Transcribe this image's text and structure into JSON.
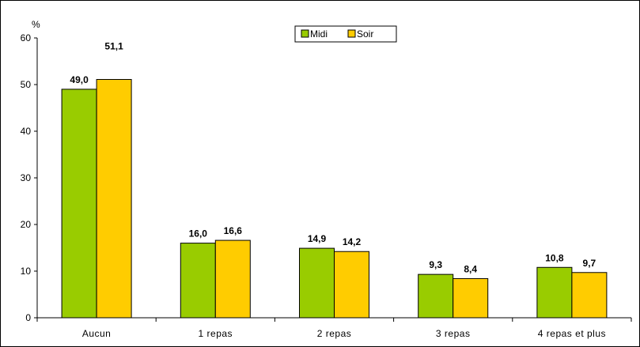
{
  "chart_data": {
    "type": "bar",
    "ylabel": "%",
    "ylim": [
      0,
      60
    ],
    "yticks": [
      0,
      10,
      20,
      30,
      40,
      50,
      60
    ],
    "categories": [
      "Aucun",
      "1 repas",
      "2 repas",
      "3 repas",
      "4 repas et plus"
    ],
    "series": [
      {
        "name": "Midi",
        "color": "#99cc00",
        "values": [
          49.0,
          16.0,
          14.9,
          9.3,
          10.8
        ],
        "labels": [
          "49,0",
          "16,0",
          "14,9",
          "9,3",
          "10,8"
        ]
      },
      {
        "name": "Soir",
        "color": "#ffcc00",
        "values": [
          51.1,
          16.6,
          14.2,
          8.4,
          9.7
        ],
        "labels": [
          "51,1",
          "16,6",
          "14,2",
          "8,4",
          "9,7"
        ]
      }
    ],
    "grid": false,
    "legend_position": "top-center"
  }
}
